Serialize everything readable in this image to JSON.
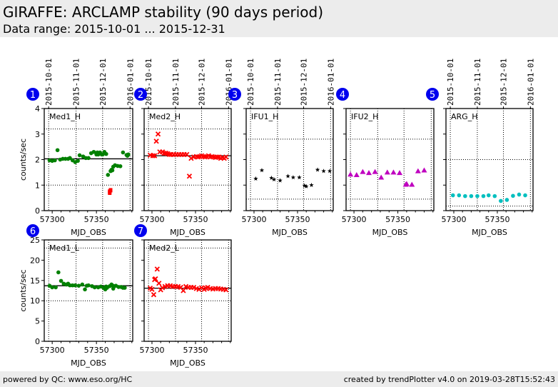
{
  "header": {
    "title": "GIRAFFE: ARCLAMP stability (90 days period)",
    "subtitle": "Data range: 2015-10-01 ... 2015-12-31"
  },
  "footer": {
    "left": "powered by QC: www.eso.org/HC",
    "right": "created by trendPlotter v4.0 on 2019-03-28T15:52:43"
  },
  "colors": {
    "header_bg": "#ececec",
    "badge": "#0000ee",
    "green": "#008000",
    "red": "#ff0000",
    "black": "#000000",
    "magenta": "#bf00bf",
    "cyan": "#00bfbf"
  },
  "chart_data": [
    {
      "id": 1,
      "type": "scatter",
      "title": "Med1_H",
      "xlabel": "MJD_OBS",
      "ylabel": "counts/sec",
      "xlim": [
        57291,
        57391
      ],
      "ylim": [
        0,
        4
      ],
      "xticks": [
        57300,
        57350
      ],
      "yticks": [
        0,
        1,
        2,
        3,
        4
      ],
      "show_ytick_labels": true,
      "top_dates": [
        "2015-10-01",
        "2015-11-01",
        "2015-12-01",
        "2016-01-01"
      ],
      "date_grid_mjd": [
        57296,
        57327,
        57357,
        57388
      ],
      "ref_line": 2.03,
      "dotted_lines": [
        3.2,
        1.0
      ],
      "marker": "circle",
      "color": "#008000",
      "x": [
        57297,
        57300,
        57303,
        57306,
        57309,
        57312,
        57315,
        57318,
        57320,
        57323,
        57326,
        57329,
        57331,
        57335,
        57338,
        57341,
        57344,
        57347,
        57350,
        57351,
        57352,
        57354,
        57356,
        57357,
        57359,
        57361,
        57363,
        57366,
        57367,
        57368,
        57369,
        57371,
        57374,
        57377,
        57380,
        57384,
        57385,
        57386
      ],
      "y": [
        1.97,
        1.95,
        1.97,
        2.37,
        2.0,
        2.03,
        2.03,
        2.03,
        2.06,
        1.97,
        1.9,
        1.95,
        2.17,
        2.12,
        2.06,
        2.06,
        2.25,
        2.3,
        2.2,
        2.28,
        2.2,
        2.28,
        2.2,
        2.2,
        2.3,
        2.22,
        1.4,
        1.55,
        1.6,
        1.58,
        1.72,
        1.78,
        1.75,
        1.74,
        2.28,
        2.18,
        2.15,
        2.2
      ],
      "outliers": {
        "color": "#ff0000",
        "marker": "square",
        "x": [
          57365,
          57365,
          57366
        ],
        "y": [
          0.7,
          0.75,
          0.8
        ]
      }
    },
    {
      "id": 2,
      "type": "scatter",
      "title": "Med2_H",
      "xlabel": "MJD_OBS",
      "ylabel": "",
      "xlim": [
        57291,
        57391
      ],
      "ylim": [
        0,
        4
      ],
      "xticks": [
        57300,
        57350
      ],
      "yticks": [
        0,
        1,
        2,
        3,
        4
      ],
      "show_ytick_labels": false,
      "top_dates": [
        "2015-10-01",
        "2015-11-01",
        "2015-12-01",
        "2016-01-01"
      ],
      "date_grid_mjd": [
        57296,
        57327,
        57357,
        57388
      ],
      "ref_line": 2.15,
      "dotted_lines": [
        3.2,
        1.0
      ],
      "marker": "x",
      "color": "#ff0000",
      "x": [
        57298,
        57301,
        57303,
        57305,
        57307,
        57309,
        57312,
        57314,
        57316,
        57318,
        57320,
        57322,
        57325,
        57328,
        57331,
        57334,
        57337,
        57340,
        57343,
        57345,
        57348,
        57351,
        57353,
        57355,
        57357,
        57359,
        57361,
        57363,
        57365,
        57367,
        57369,
        57371,
        57373,
        57375,
        57377,
        57379,
        57381,
        57383,
        57385
      ],
      "y": [
        2.17,
        2.15,
        2.15,
        2.72,
        3.0,
        2.3,
        2.3,
        2.25,
        2.25,
        2.23,
        2.2,
        2.2,
        2.2,
        2.2,
        2.2,
        2.2,
        2.2,
        2.2,
        1.35,
        2.05,
        2.1,
        2.12,
        2.1,
        2.12,
        2.15,
        2.12,
        2.1,
        2.12,
        2.15,
        2.1,
        2.12,
        2.1,
        2.08,
        2.1,
        2.1,
        2.05,
        2.08,
        2.05,
        2.1
      ]
    },
    {
      "id": 3,
      "type": "scatter",
      "title": "IFU1_H",
      "xlabel": "MJD_OBS",
      "ylabel": "",
      "xlim": [
        57291,
        57391
      ],
      "ylim": [
        0,
        4
      ],
      "xticks": [
        57300,
        57350
      ],
      "yticks": [
        0,
        1,
        2,
        3,
        4
      ],
      "show_ytick_labels": false,
      "top_dates": [
        "2015-10-01",
        "2015-11-01",
        "2015-12-01",
        "2016-01-01"
      ],
      "date_grid_mjd": [
        57296,
        57327,
        57357,
        57388
      ],
      "ref_line": null,
      "dotted_lines": [
        2.8,
        0.45
      ],
      "marker": "star",
      "color": "#000000",
      "x": [
        57302,
        57309,
        57320,
        57323,
        57330,
        57339,
        57345,
        57352,
        57358,
        57360,
        57366,
        57373,
        57380,
        57387
      ],
      "y": [
        1.25,
        1.58,
        1.28,
        1.22,
        1.18,
        1.35,
        1.3,
        1.3,
        0.98,
        0.95,
        1.0,
        1.6,
        1.55,
        1.55
      ]
    },
    {
      "id": 4,
      "type": "scatter",
      "title": "IFU2_H",
      "xlabel": "MJD_OBS",
      "ylabel": "",
      "xlim": [
        57291,
        57391
      ],
      "ylim": [
        0,
        4
      ],
      "xticks": [
        57300,
        57350
      ],
      "yticks": [
        0,
        1,
        2,
        3,
        4
      ],
      "show_ytick_labels": false,
      "top_dates": [],
      "date_grid_mjd": [
        57296,
        57327,
        57357,
        57388
      ],
      "ref_line": null,
      "dotted_lines": [
        2.8,
        0.45
      ],
      "marker": "triangle",
      "color": "#bf00bf",
      "x": [
        57296,
        57303,
        57310,
        57317,
        57324,
        57331,
        57338,
        57345,
        57352,
        57359,
        57360,
        57366,
        57373,
        57380
      ],
      "y": [
        1.42,
        1.4,
        1.52,
        1.48,
        1.52,
        1.3,
        1.5,
        1.5,
        1.48,
        1.02,
        1.05,
        1.02,
        1.55,
        1.58
      ]
    },
    {
      "id": 5,
      "type": "scatter",
      "title": "ARG_H",
      "xlabel": "MJD_OBS",
      "ylabel": "",
      "xlim": [
        57291,
        57391
      ],
      "ylim": [
        0,
        4
      ],
      "xticks": [
        57300,
        57350
      ],
      "yticks": [
        0,
        1,
        2,
        3,
        4
      ],
      "show_ytick_labels": false,
      "top_dates": [
        "2015-10-01",
        "2015-11-01",
        "2015-12-01",
        "2016-01-01"
      ],
      "date_grid_mjd": [
        57296,
        57327,
        57357,
        57388
      ],
      "ref_line": null,
      "dotted_lines": [
        2.0,
        0.18
      ],
      "marker": "circle",
      "color": "#00bfbf",
      "x": [
        57299,
        57306,
        57313,
        57320,
        57327,
        57334,
        57340,
        57347,
        57354,
        57361,
        57368,
        57375,
        57382
      ],
      "y": [
        0.6,
        0.6,
        0.57,
        0.57,
        0.57,
        0.57,
        0.6,
        0.57,
        0.38,
        0.42,
        0.58,
        0.63,
        0.6
      ]
    },
    {
      "id": 6,
      "type": "scatter",
      "title": "Med1_L",
      "xlabel": "MJD_OBS",
      "ylabel": "counts/sec",
      "xlim": [
        57291,
        57391
      ],
      "ylim": [
        0,
        25
      ],
      "xticks": [
        57300,
        57350
      ],
      "yticks": [
        0,
        5,
        10,
        15,
        20,
        25
      ],
      "show_ytick_labels": true,
      "top_dates": [],
      "date_grid_mjd": [
        57296,
        57327,
        57357,
        57388
      ],
      "ref_line": 13.7,
      "dotted_lines": [
        23.0,
        10.0
      ],
      "marker": "circle",
      "color": "#008000",
      "x": [
        57297,
        57300,
        57304,
        57307,
        57310,
        57313,
        57316,
        57318,
        57320,
        57323,
        57326,
        57330,
        57334,
        57337,
        57339,
        57341,
        57345,
        57348,
        57352,
        57355,
        57358,
        57360,
        57361,
        57362,
        57365,
        57367,
        57368,
        57369,
        57370,
        57372,
        57375,
        57378,
        57380,
        57382
      ],
      "y": [
        13.7,
        13.3,
        13.3,
        17.0,
        14.9,
        14.2,
        14.0,
        14.2,
        13.8,
        13.8,
        13.8,
        13.7,
        14.0,
        12.8,
        13.7,
        13.8,
        13.6,
        13.3,
        13.3,
        13.5,
        13.2,
        12.8,
        13.5,
        13.2,
        13.6,
        14.0,
        13.8,
        13.0,
        13.6,
        13.7,
        13.4,
        13.4,
        13.2,
        13.2
      ]
    },
    {
      "id": 7,
      "type": "scatter",
      "title": "Med2_L",
      "xlabel": "MJD_OBS",
      "ylabel": "",
      "xlim": [
        57291,
        57391
      ],
      "ylim": [
        0,
        25
      ],
      "xticks": [
        57300,
        57350
      ],
      "yticks": [
        0,
        5,
        10,
        15,
        20,
        25
      ],
      "show_ytick_labels": false,
      "top_dates": [],
      "date_grid_mjd": [
        57296,
        57327,
        57357,
        57388
      ],
      "ref_line": 13.1,
      "dotted_lines": [
        23.0,
        10.0
      ],
      "marker": "x",
      "color": "#ff0000",
      "x": [
        57298,
        57300,
        57302,
        57303,
        57304,
        57306,
        57308,
        57310,
        57312,
        57315,
        57318,
        57321,
        57324,
        57327,
        57330,
        57333,
        57336,
        57339,
        57342,
        57345,
        57348,
        57351,
        57354,
        57357,
        57360,
        57362,
        57364,
        57367,
        57370,
        57373,
        57376,
        57379,
        57382,
        57385
      ],
      "y": [
        13.1,
        12.8,
        11.5,
        15.2,
        15.4,
        17.8,
        14.3,
        12.7,
        13.2,
        13.5,
        13.7,
        13.7,
        13.5,
        13.5,
        13.5,
        13.3,
        12.5,
        13.5,
        13.3,
        13.3,
        13.3,
        13.0,
        12.8,
        13.2,
        12.8,
        13.1,
        13.3,
        13.0,
        12.9,
        13.0,
        13.0,
        12.9,
        12.8,
        12.7
      ]
    }
  ]
}
